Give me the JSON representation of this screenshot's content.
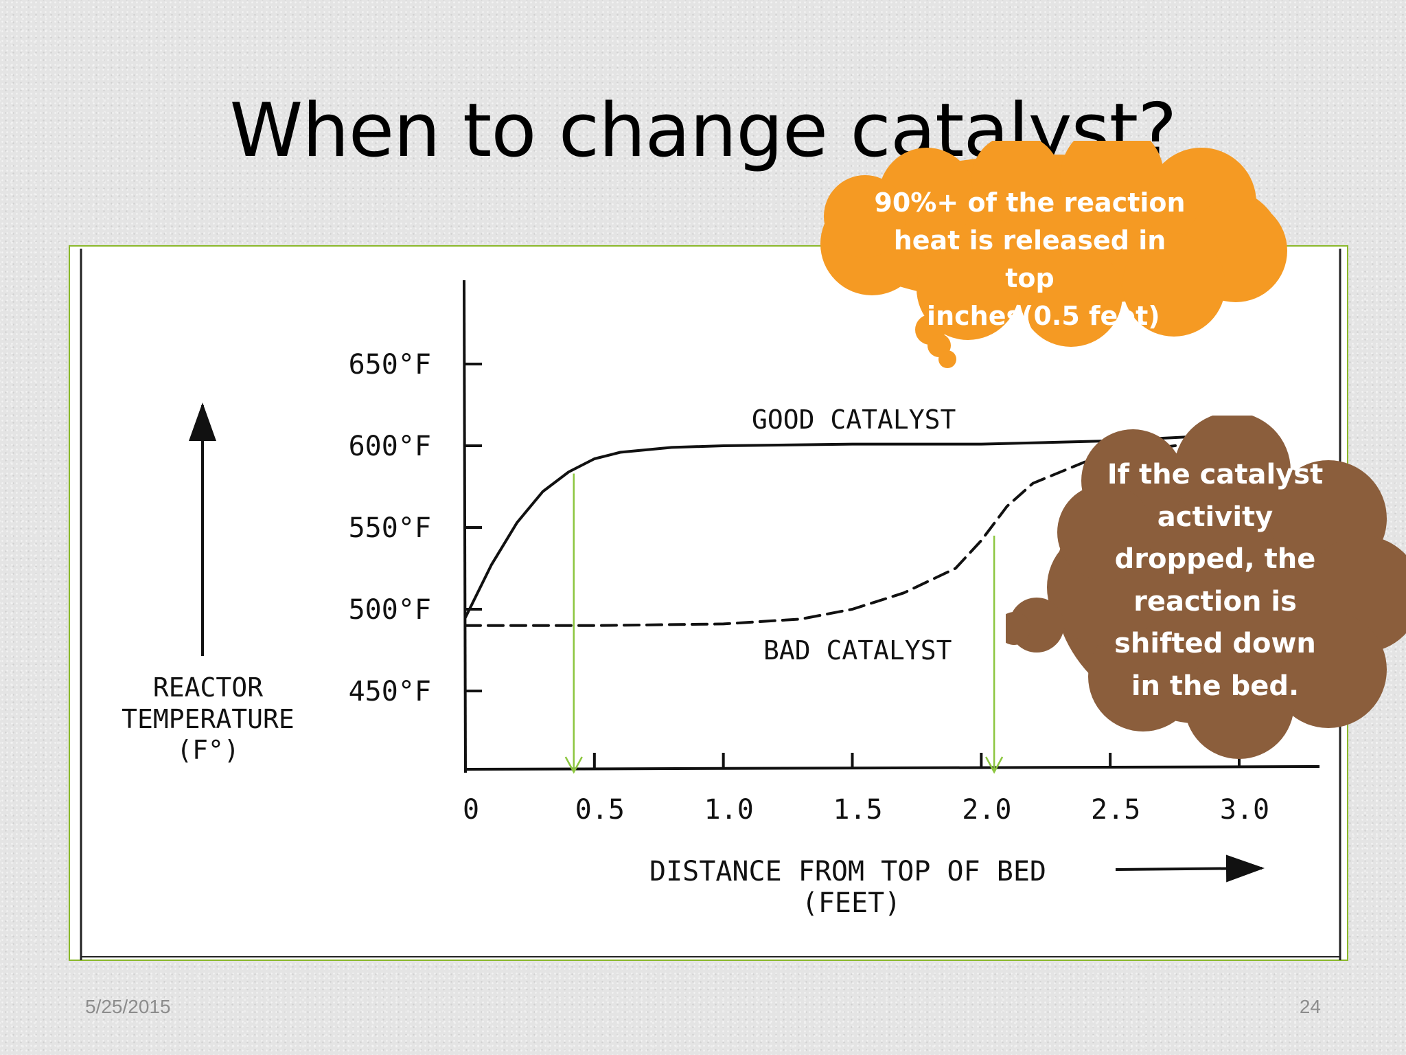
{
  "slide": {
    "title": "When to change catalyst?",
    "date": "5/25/2015",
    "page_number": "24"
  },
  "callouts": {
    "orange": "90%+ of the reaction\nheat is released in top\n6 inches(0.5 feet)",
    "brown": "If the catalyst\nactivity\ndropped, the\nreaction is\nshifted down\nin the bed."
  },
  "colors": {
    "orange_cloud": "#f59a23",
    "brown_cloud": "#8b5e3c",
    "marker_arrow": "#8cc63f",
    "frame_border": "#8ab82a",
    "ink": "#111111"
  },
  "chart_data": {
    "type": "line",
    "x_tick_labels": [
      "0",
      "0.5",
      "1.0",
      "1.5",
      "2.0",
      "2.5",
      "3.0"
    ],
    "y_tick_labels": [
      "450°F",
      "500°F",
      "550°F",
      "600°F",
      "650°F"
    ],
    "xlabel_lines": [
      "DISTANCE FROM TOP OF BED",
      "(FEET)"
    ],
    "ylabel_lines": [
      "REACTOR",
      "TEMPERATURE",
      "(F°)"
    ],
    "xlim": [
      0,
      3.0
    ],
    "ylim": [
      400,
      700
    ],
    "grid": false,
    "series": [
      {
        "name": "GOOD CATALYST",
        "style": "solid",
        "x": [
          0,
          0.1,
          0.2,
          0.3,
          0.4,
          0.5,
          0.6,
          0.8,
          1.0,
          1.5,
          2.0,
          2.5,
          3.0
        ],
        "y": [
          495,
          527,
          553,
          572,
          584,
          592,
          596,
          599,
          600,
          601,
          601,
          603,
          607
        ]
      },
      {
        "name": "BAD CATALYST",
        "style": "dashed",
        "x": [
          0,
          0.5,
          1.0,
          1.3,
          1.5,
          1.7,
          1.9,
          2.0,
          2.1,
          2.2,
          2.4,
          2.6,
          2.8,
          2.95
        ],
        "y": [
          490,
          490,
          491,
          494,
          500,
          510,
          525,
          542,
          563,
          577,
          590,
          597,
          601,
          603
        ]
      }
    ],
    "markers": [
      {
        "x": 0.42,
        "y_from": 583,
        "y_to": 400
      },
      {
        "x": 2.05,
        "y_from": 545,
        "y_to": 400
      }
    ]
  }
}
